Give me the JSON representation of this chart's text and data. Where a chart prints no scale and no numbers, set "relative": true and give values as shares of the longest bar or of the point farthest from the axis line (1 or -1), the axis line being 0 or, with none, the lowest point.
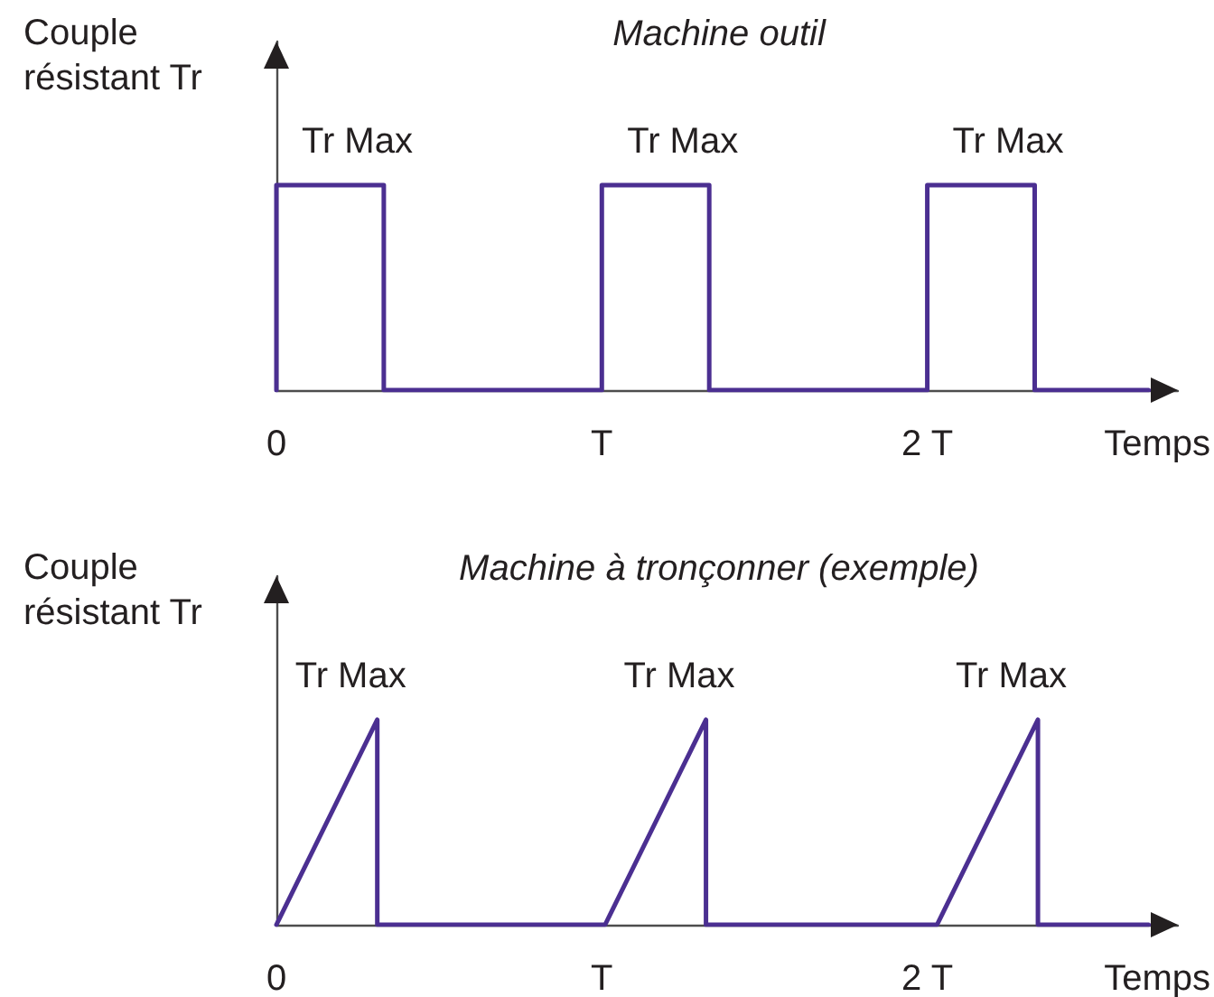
{
  "chart_data": [
    {
      "type": "line",
      "title": "Machine outil",
      "xlabel": "Temps",
      "ylabel": "Couple résistant Tr",
      "relative": true,
      "x": [
        0,
        0,
        0.33,
        0.33,
        1,
        1,
        1.33,
        1.33,
        2,
        2,
        2.33,
        2.33,
        2.68
      ],
      "values": [
        0,
        1,
        1,
        0,
        0,
        1,
        1,
        0,
        0,
        1,
        1,
        0,
        0
      ],
      "color": "#4b2f91",
      "xlim": [
        0,
        2.77
      ],
      "xticks": [
        {
          "value": 0,
          "label": "0"
        },
        {
          "value": 1,
          "label": "T"
        },
        {
          "value": 2,
          "label": "2 T"
        }
      ],
      "annotations": [
        {
          "text": "Tr Max",
          "x": 0.33,
          "y": 1
        },
        {
          "text": "Tr Max",
          "x": 1.33,
          "y": 1
        },
        {
          "text": "Tr Max",
          "x": 2.33,
          "y": 1
        }
      ],
      "marker": "none",
      "line_style": "solid",
      "tick_labels": "x"
    },
    {
      "type": "line",
      "title": "Machine à tronçonner (exemple)",
      "xlabel": "Temps",
      "ylabel": "Couple résistant Tr",
      "relative": true,
      "x": [
        0,
        0.31,
        0.31,
        1.01,
        1.32,
        1.32,
        2.03,
        2.34,
        2.34,
        2.68
      ],
      "values": [
        0,
        1,
        0,
        0,
        1,
        0,
        0,
        1,
        0,
        0
      ],
      "color": "#4b2f91",
      "xlim": [
        0,
        2.77
      ],
      "xticks": [
        {
          "value": 0,
          "label": "0"
        },
        {
          "value": 1,
          "label": "T"
        },
        {
          "value": 2,
          "label": "2 T"
        }
      ],
      "annotations": [
        {
          "text": "Tr Max",
          "x": 0.31,
          "y": 1
        },
        {
          "text": "Tr Max",
          "x": 1.32,
          "y": 1
        },
        {
          "text": "Tr Max",
          "x": 2.34,
          "y": 1
        }
      ],
      "marker": "none",
      "line_style": "solid",
      "tick_labels": "x"
    }
  ]
}
